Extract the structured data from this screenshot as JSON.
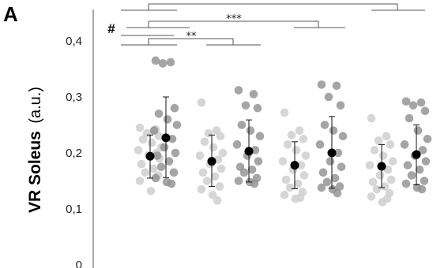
{
  "panel_label": "A",
  "chart_data": {
    "type": "scatter",
    "title": "",
    "xlabel": "",
    "ylabel": {
      "name": "VR Soleus",
      "unit": "(a.u.)"
    },
    "ylim": [
      0,
      0.45
    ],
    "yticks": [
      "0",
      "0,1",
      "0,2",
      "0,3",
      "0,4"
    ],
    "ytick_values": [
      0,
      0.1,
      0.2,
      0.3,
      0.4
    ],
    "grid": false,
    "legend": "none",
    "point_colors": {
      "light": "#cfcfcf",
      "dark": "#8e8e8e",
      "mean": "#000000"
    },
    "groups": [
      {
        "shade": "light",
        "mean": 0.194,
        "sd_low": 0.155,
        "sd_high": 0.232,
        "values": [
          0.245,
          0.24,
          0.235,
          0.23,
          0.224,
          0.218,
          0.21,
          0.205,
          0.2,
          0.196,
          0.19,
          0.18,
          0.172,
          0.165,
          0.16,
          0.15,
          0.132,
          0.242
        ]
      },
      {
        "shade": "dark",
        "mean": 0.227,
        "sd_low": 0.156,
        "sd_high": 0.3,
        "values": [
          0.365,
          0.362,
          0.36,
          0.28,
          0.27,
          0.26,
          0.25,
          0.24,
          0.225,
          0.21,
          0.2,
          0.195,
          0.185,
          0.175,
          0.165,
          0.155,
          0.148,
          0.145
        ]
      },
      {
        "shade": "light",
        "mean": 0.185,
        "sd_low": 0.14,
        "sd_high": 0.232,
        "values": [
          0.29,
          0.24,
          0.235,
          0.23,
          0.22,
          0.21,
          0.2,
          0.195,
          0.188,
          0.18,
          0.172,
          0.165,
          0.158,
          0.15,
          0.14,
          0.135,
          0.125,
          0.115
        ]
      },
      {
        "shade": "dark",
        "mean": 0.203,
        "sd_low": 0.148,
        "sd_high": 0.259,
        "values": [
          0.312,
          0.305,
          0.285,
          0.28,
          0.25,
          0.24,
          0.23,
          0.215,
          0.205,
          0.195,
          0.185,
          0.175,
          0.17,
          0.165,
          0.155,
          0.15,
          0.148,
          0.145
        ]
      },
      {
        "shade": "light",
        "mean": 0.178,
        "sd_low": 0.136,
        "sd_high": 0.22,
        "values": [
          0.272,
          0.24,
          0.232,
          0.225,
          0.215,
          0.205,
          0.195,
          0.185,
          0.178,
          0.17,
          0.16,
          0.152,
          0.145,
          0.138,
          0.13,
          0.125,
          0.118,
          0.12
        ]
      },
      {
        "shade": "dark",
        "mean": 0.2,
        "sd_low": 0.137,
        "sd_high": 0.265,
        "values": [
          0.322,
          0.32,
          0.3,
          0.285,
          0.25,
          0.24,
          0.23,
          0.215,
          0.2,
          0.185,
          0.175,
          0.165,
          0.155,
          0.148,
          0.14,
          0.138,
          0.135,
          0.128
        ]
      },
      {
        "shade": "light",
        "mean": 0.176,
        "sd_low": 0.138,
        "sd_high": 0.215,
        "values": [
          0.262,
          0.23,
          0.222,
          0.215,
          0.205,
          0.195,
          0.185,
          0.178,
          0.17,
          0.16,
          0.152,
          0.148,
          0.14,
          0.135,
          0.128,
          0.122,
          0.112,
          0.118
        ]
      },
      {
        "shade": "dark",
        "mean": 0.197,
        "sd_low": 0.143,
        "sd_high": 0.25,
        "values": [
          0.292,
          0.29,
          0.285,
          0.275,
          0.262,
          0.24,
          0.225,
          0.215,
          0.205,
          0.195,
          0.185,
          0.178,
          0.17,
          0.16,
          0.15,
          0.145,
          0.138,
          0.135
        ]
      }
    ],
    "significance": [
      {
        "label": "**",
        "from_group": 0,
        "to_group": 3
      },
      {
        "label": "***",
        "from_group": 1,
        "to_group": 5
      },
      {
        "label": "#",
        "from_group": 0,
        "to_group": 5
      },
      {
        "label": "",
        "from_group": 1,
        "to_group": 7
      }
    ]
  }
}
